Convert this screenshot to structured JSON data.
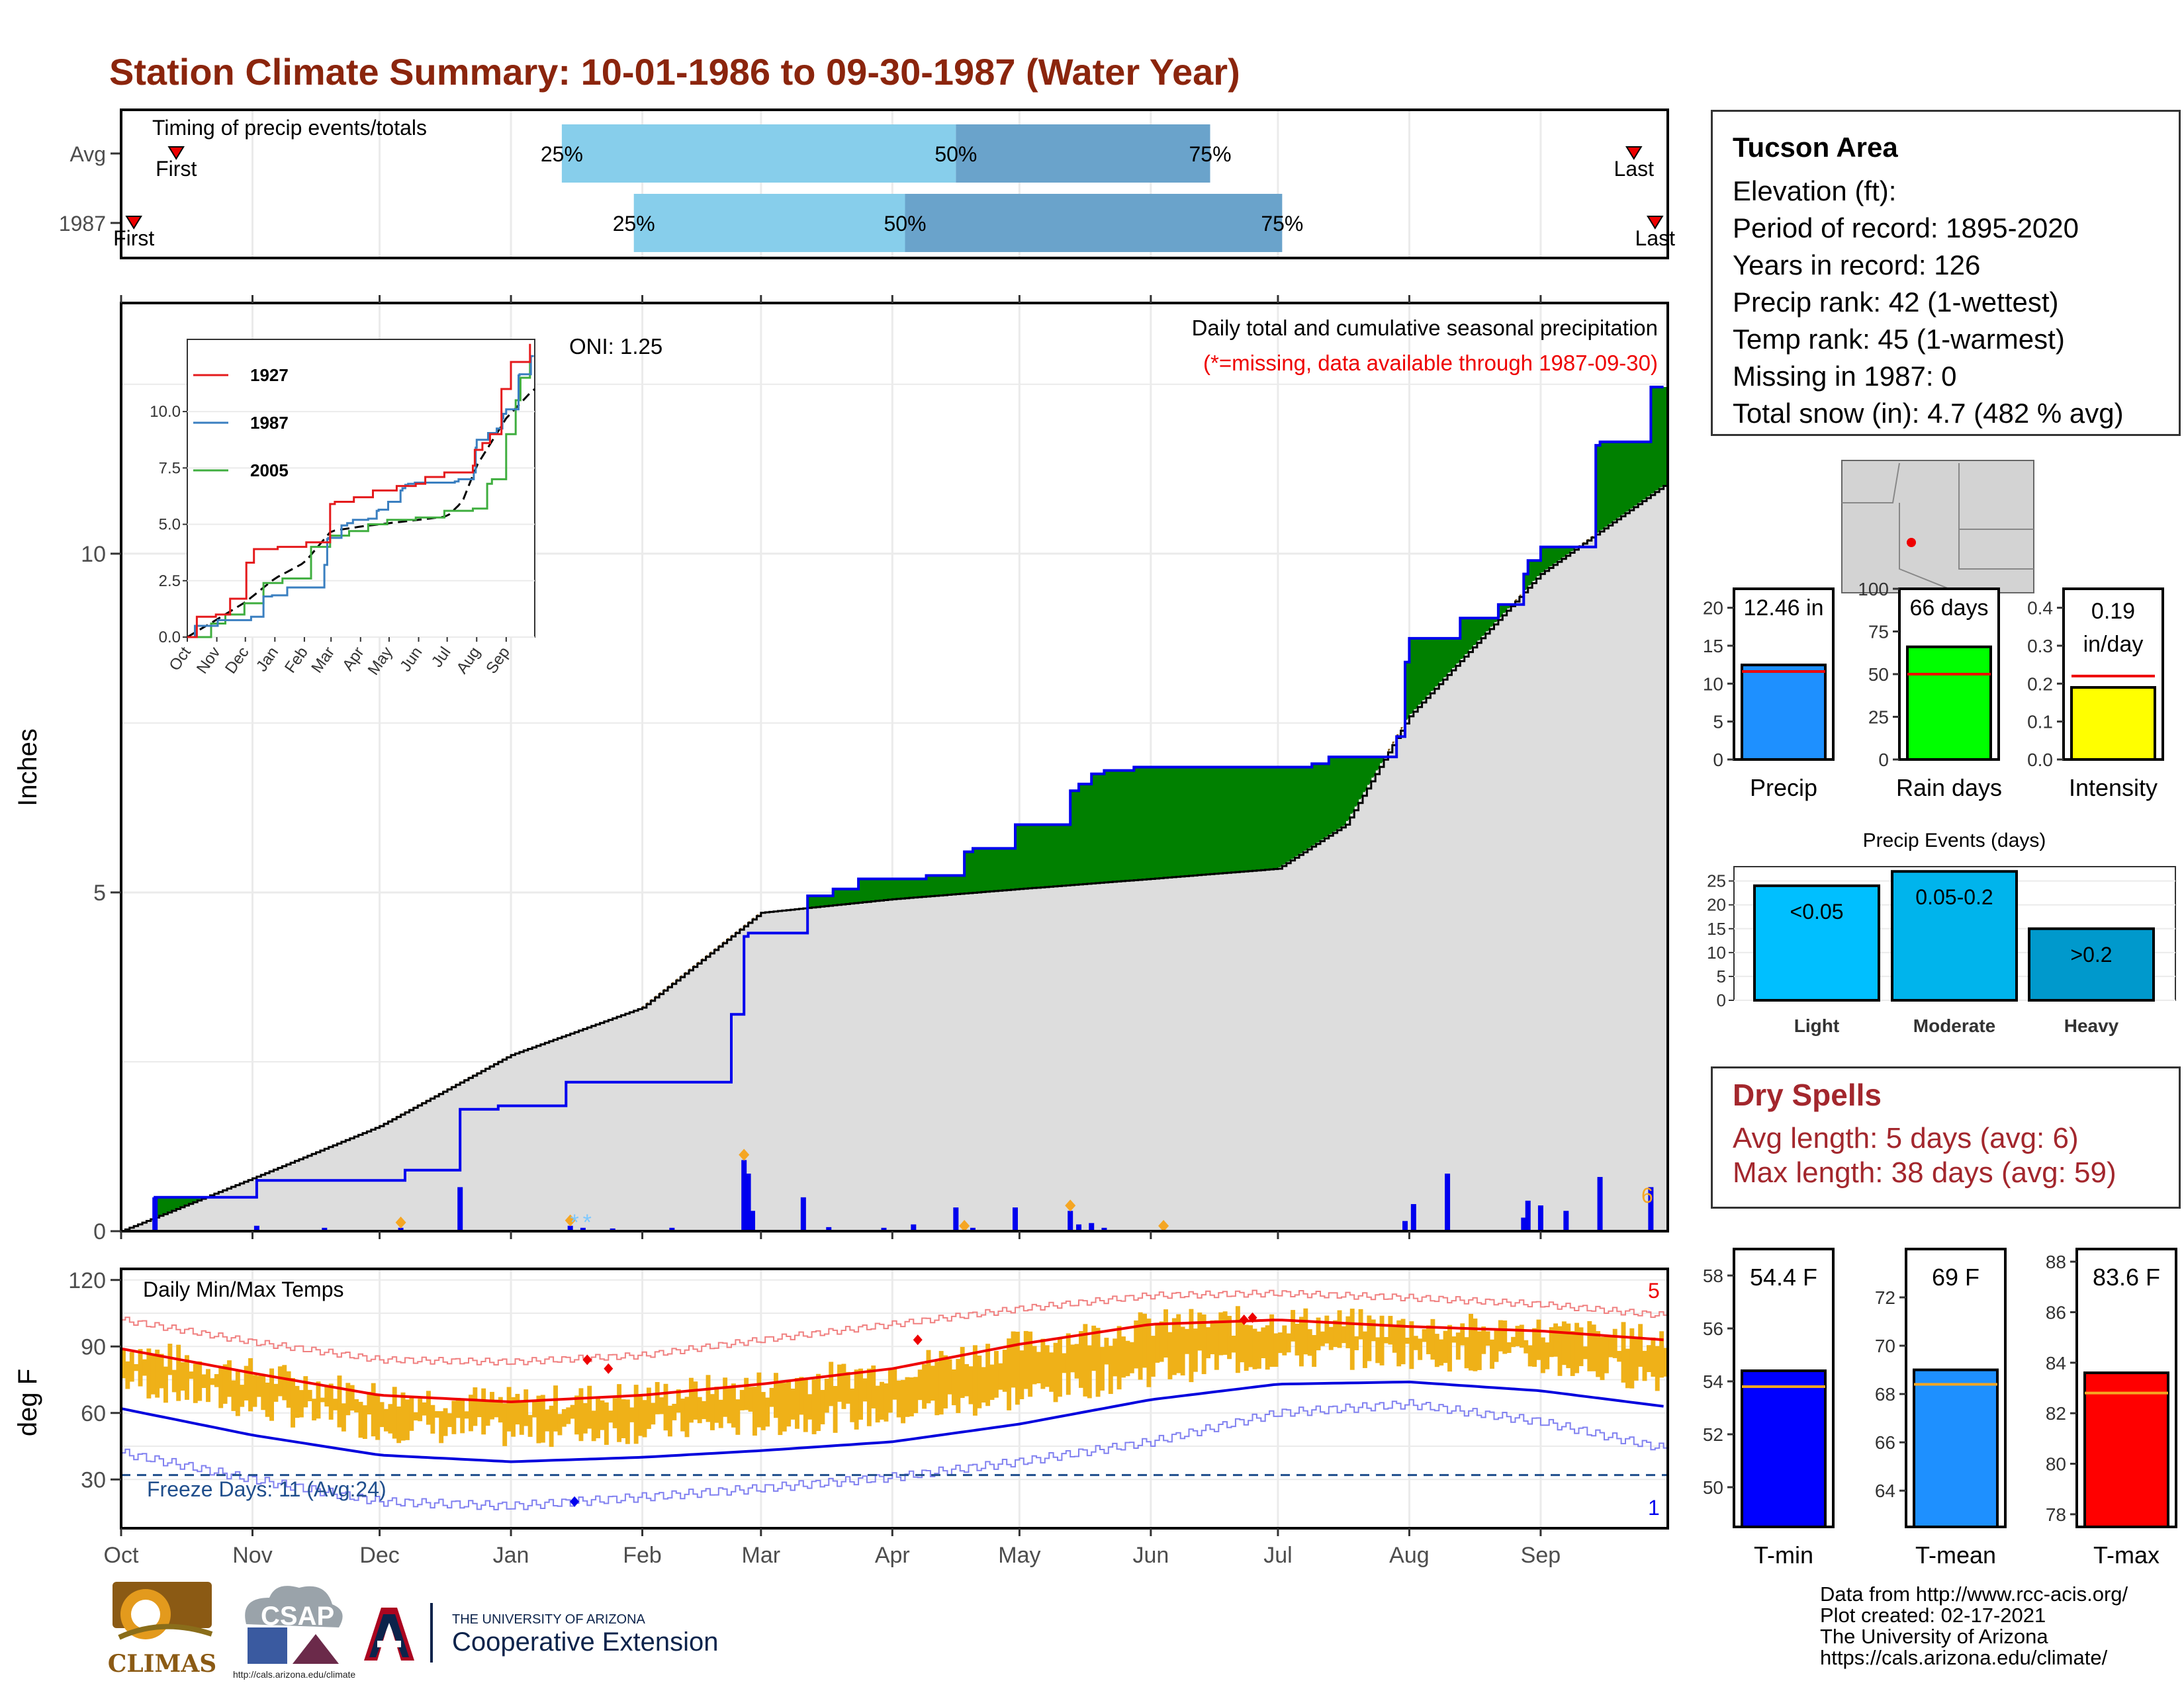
{
  "page_title": "Station Climate Summary: 10-01-1986 to 09-30-1987 (Water Year)",
  "station": {
    "name": "Tucson Area",
    "lines": [
      "Elevation (ft):",
      "Period of record: 1895-2020",
      "Years in record: 126",
      "Precip rank: 42 (1-wettest)",
      "Temp rank: 45 (1-warmest)",
      "Missing in 1987: 0",
      "Total snow (in): 4.7 (482 % avg)"
    ]
  },
  "dry_spells": {
    "title": "Dry Spells",
    "avg_length": "Avg length: 5 days (avg: 6)",
    "max_length": "Max length: 38 days (avg: 59)"
  },
  "credits": [
    "Data from http://www.rcc-acis.org/",
    "Plot created: 02-17-2021",
    "The University of Arizona",
    "https://cals.arizona.edu/climate/"
  ],
  "logos": {
    "climas": "CLIMAS",
    "csap": "CSAP",
    "csap_url": "http://cals.arizona.edu/climate",
    "ua_small": "THE UNIVERSITY OF ARIZONA",
    "ua_big": "Cooperative Extension"
  },
  "colors": {
    "title": "#8b250d",
    "surplus": "#008000",
    "deficit": "#7f4f00",
    "cumulative_line": "#0000ee",
    "climatology_fill": "#dddddd",
    "tmax_line": "#ee0000",
    "tmin_line": "#0000dd",
    "temp_bars": "#efb118",
    "timing_light": "#87ceeb",
    "timing_dark": "#6aa3cb"
  },
  "chart_data": [
    {
      "id": "timing",
      "type": "bar",
      "title": "Timing of precip events/totals",
      "x_range_days": [
        0,
        365
      ],
      "rows": [
        {
          "label": "Avg",
          "first": 13,
          "p25": 104,
          "p50": 197,
          "p75": 257,
          "last": 357
        },
        {
          "label": "1987",
          "first": 3,
          "p25": 121,
          "p50": 185,
          "p75": 274,
          "last": 362
        }
      ],
      "marker_labels": {
        "first": "First",
        "last": "Last",
        "p25": "25%",
        "p50": "50%",
        "p75": "75%"
      }
    },
    {
      "id": "precip",
      "type": "area",
      "ylabel": "Inches",
      "ylim": [
        0,
        13.7
      ],
      "yticks": [
        0,
        5,
        10
      ],
      "note_title": "Daily total and cumulative seasonal precipitation",
      "note_missing": "(*=missing, data available through 1987-09-30)",
      "oni": "ONI: 1.25",
      "corner_count": "6",
      "x_months": [
        "Oct",
        "Nov",
        "Dec",
        "Jan",
        "Feb",
        "Mar",
        "Apr",
        "May",
        "Jun",
        "Jul",
        "Aug",
        "Sep"
      ],
      "normal_cumulative": {
        "x": [
          0,
          31,
          61,
          92,
          123,
          151,
          182,
          212,
          243,
          273,
          289,
          304,
          335,
          364
        ],
        "y": [
          0,
          0.78,
          1.55,
          2.6,
          3.3,
          4.7,
          4.9,
          5.05,
          5.2,
          5.35,
          6.0,
          7.6,
          9.7,
          11.0
        ]
      },
      "observed_cumulative": {
        "x": [
          0,
          8,
          32,
          67,
          80,
          89,
          105,
          144,
          147,
          148,
          162,
          168,
          174,
          190,
          199,
          201,
          211,
          224,
          226,
          229,
          232,
          239,
          240,
          281,
          285,
          301,
          303,
          304,
          313,
          316,
          317,
          325,
          331,
          332,
          335,
          348,
          349,
          361,
          364
        ],
        "y": [
          0,
          0.5,
          0.75,
          0.9,
          1.8,
          1.85,
          2.2,
          3.2,
          4.35,
          4.4,
          4.95,
          5.05,
          5.2,
          5.25,
          5.6,
          5.65,
          6.0,
          6.5,
          6.6,
          6.75,
          6.8,
          6.85,
          6.85,
          6.9,
          7.0,
          7.3,
          8.4,
          8.75,
          8.75,
          9.05,
          9.05,
          9.25,
          9.7,
          9.9,
          10.1,
          11.6,
          11.65,
          12.46,
          12.46
        ]
      },
      "daily_events": {
        "day": [
          8,
          32,
          48,
          66,
          80,
          106,
          109,
          116,
          130,
          147,
          148,
          149,
          161,
          167,
          180,
          187,
          197,
          201,
          211,
          224,
          226,
          229,
          232,
          303,
          305,
          313,
          331,
          332,
          335,
          341,
          349,
          361
        ],
        "inches": [
          0.5,
          0.08,
          0.05,
          0.05,
          0.65,
          0.08,
          0.05,
          0.04,
          0.05,
          1.05,
          0.85,
          0.3,
          0.5,
          0.06,
          0.05,
          0.1,
          0.35,
          0.05,
          0.35,
          0.3,
          0.1,
          0.12,
          0.05,
          0.15,
          0.4,
          0.85,
          0.2,
          0.45,
          0.38,
          0.3,
          0.8,
          0.65
        ]
      },
      "extreme_markers_day": [
        66,
        106,
        147,
        199,
        224,
        246
      ],
      "snow_days": [
        107,
        110
      ]
    },
    {
      "id": "temps",
      "type": "bar",
      "title": "Daily Min/Max Temps",
      "ylabel": "deg F",
      "ylim": [
        8,
        125
      ],
      "yticks": [
        30,
        60,
        90,
        120
      ],
      "freeze_label": "Freeze Days: 11 (Avg:24)",
      "freeze_line_f": 32,
      "count_high": "5",
      "count_low": "1",
      "normal_max": {
        "x": [
          0,
          31,
          61,
          92,
          123,
          151,
          182,
          212,
          243,
          273,
          304,
          335,
          364
        ],
        "y": [
          89,
          78,
          68,
          65,
          68,
          73,
          80,
          91,
          100,
          102,
          99,
          97,
          93
        ]
      },
      "normal_min": {
        "x": [
          0,
          31,
          61,
          92,
          123,
          151,
          182,
          212,
          243,
          273,
          304,
          335,
          364
        ],
        "y": [
          62,
          50,
          41,
          38,
          40,
          43,
          47,
          55,
          66,
          73,
          74,
          70,
          63
        ]
      },
      "record_max": {
        "x": [
          0,
          31,
          61,
          92,
          123,
          151,
          182,
          212,
          243,
          273,
          304,
          335,
          364
        ],
        "y": [
          102,
          92,
          84,
          83,
          86,
          93,
          100,
          107,
          113,
          114,
          112,
          109,
          104
        ]
      },
      "record_min": {
        "x": [
          0,
          31,
          61,
          92,
          123,
          151,
          182,
          212,
          243,
          273,
          304,
          335,
          364
        ],
        "y": [
          42,
          30,
          20,
          18,
          22,
          26,
          31,
          38,
          47,
          60,
          64,
          56,
          44
        ]
      }
    },
    {
      "id": "precip_bars",
      "type": "bar",
      "categories": [
        "Precip",
        "Rain days",
        "Intensity"
      ],
      "panels": [
        {
          "label": "Precip",
          "value": 12.46,
          "avg": 11.6,
          "ylim": [
            0,
            22.5
          ],
          "yticks": [
            0,
            5,
            10,
            15,
            20
          ],
          "text": "12.46 in",
          "color": "#1e90ff"
        },
        {
          "label": "Rain days",
          "value": 66,
          "avg": 50,
          "ylim": [
            0,
            100
          ],
          "yticks": [
            0,
            25,
            50,
            75,
            100
          ],
          "text": "66 days",
          "color": "#00ff00"
        },
        {
          "label": "Intensity",
          "value": 0.19,
          "avg": 0.22,
          "ylim": [
            0,
            0.45
          ],
          "yticks": [
            0.0,
            0.1,
            0.2,
            0.3,
            0.4
          ],
          "text": "0.19 in/day",
          "color": "#ffff00"
        }
      ]
    },
    {
      "id": "precip_events",
      "type": "bar",
      "title": "Precip Events (days)",
      "categories": [
        "Light",
        "Moderate",
        "Heavy"
      ],
      "bar_labels": [
        "<0.05",
        "0.05-0.2",
        ">0.2"
      ],
      "values": [
        24,
        27,
        15
      ],
      "ylim": [
        0,
        28
      ],
      "yticks": [
        0,
        5,
        10,
        15,
        20,
        25
      ]
    },
    {
      "id": "temp_bars",
      "type": "bar",
      "categories": [
        "T-min",
        "T-mean",
        "T-max"
      ],
      "panels": [
        {
          "label": "T-min",
          "value": 54.4,
          "avg": 53.8,
          "ylim": [
            48.5,
            59
          ],
          "yticks": [
            50,
            52,
            54,
            56,
            58
          ],
          "text": "54.4 F",
          "color": "#0000ff"
        },
        {
          "label": "T-mean",
          "value": 69,
          "avg": 68.4,
          "ylim": [
            62.5,
            74
          ],
          "yticks": [
            64,
            66,
            68,
            70,
            72
          ],
          "text": "69 F",
          "color": "#1e90ff"
        },
        {
          "label": "T-max",
          "value": 83.6,
          "avg": 82.8,
          "ylim": [
            77.5,
            88.5
          ],
          "yticks": [
            78,
            80,
            82,
            84,
            86,
            88
          ],
          "text": "83.6 F",
          "color": "#ff0000"
        }
      ]
    }
  ]
}
